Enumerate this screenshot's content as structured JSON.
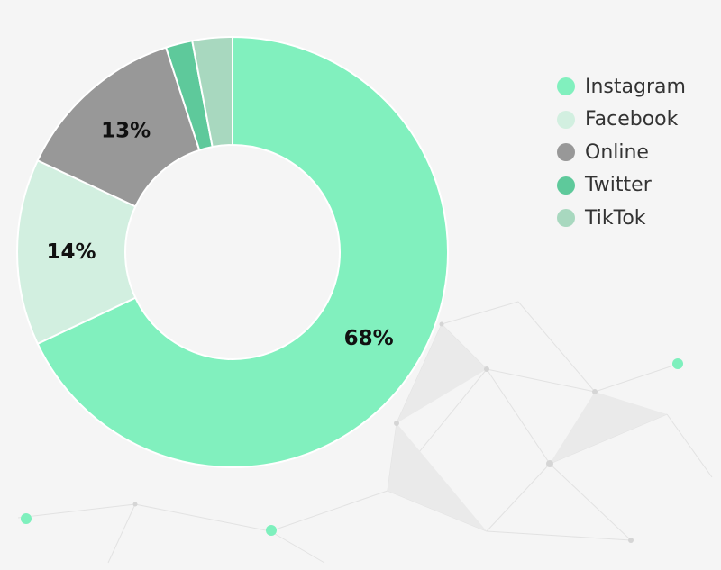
{
  "chart_data": {
    "type": "pie",
    "donut": true,
    "categories": [
      "Instagram",
      "Facebook",
      "Online",
      "Twitter",
      "TikTok"
    ],
    "values": [
      68,
      14,
      13,
      2,
      3
    ],
    "slice_labels": [
      "68%",
      "14%",
      "13%",
      "",
      ""
    ],
    "colors": [
      "#81f0be",
      "#d2efe0",
      "#989898",
      "#5ec99b",
      "#a8d8bf"
    ],
    "title": "",
    "legend_position": "right"
  },
  "legend": [
    {
      "label": "Instagram",
      "color": "#81f0be"
    },
    {
      "label": "Facebook",
      "color": "#d2efe0"
    },
    {
      "label": "Online",
      "color": "#989898"
    },
    {
      "label": "Twitter",
      "color": "#5ec99b"
    },
    {
      "label": "TikTok",
      "color": "#a8d8bf"
    }
  ]
}
